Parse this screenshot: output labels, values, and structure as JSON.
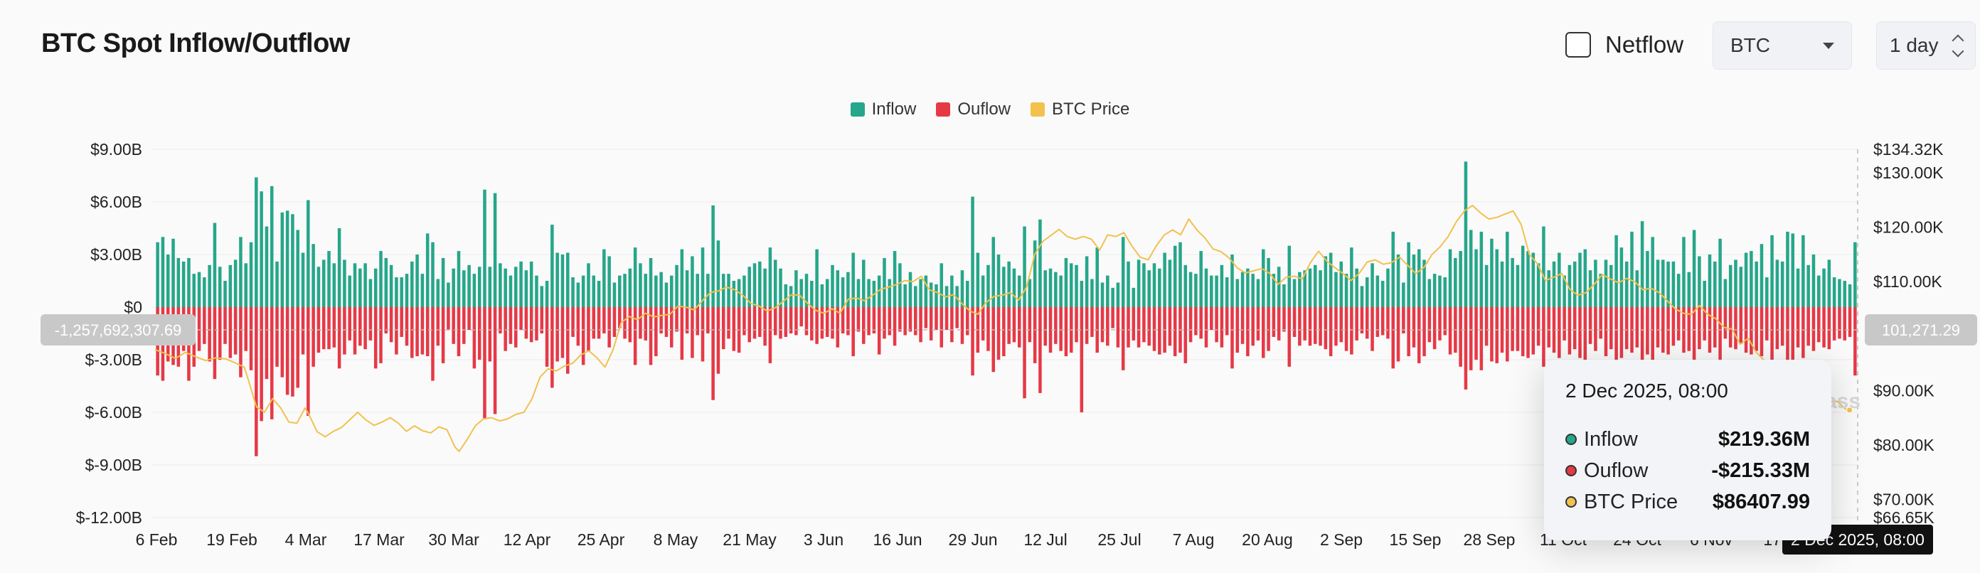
{
  "header": {
    "title": "BTC Spot Inflow/Outflow",
    "netflow_label": "Netflow",
    "asset_selected": "BTC",
    "interval_selected": "1 day"
  },
  "colors": {
    "inflow": "#26a68a",
    "outflow": "#e63946",
    "price": "#f2c14e"
  },
  "legend": [
    "Inflow",
    "Ouflow",
    "BTC Price"
  ],
  "crosshair": {
    "left_value": "-1,257,692,307.69",
    "right_value": "101,271.29",
    "date": "2 Dec 2025, 08:00"
  },
  "tooltip": {
    "date": "2 Dec 2025, 08:00",
    "rows": [
      {
        "name": "Inflow",
        "value": "$219.36M"
      },
      {
        "name": "Ouflow",
        "value": "-$215.33M"
      },
      {
        "name": "BTC Price",
        "value": "$86407.99"
      }
    ]
  },
  "watermark": "ass",
  "chart_data": {
    "type": "bar",
    "x_ticks": [
      "6 Feb",
      "19 Feb",
      "4 Mar",
      "17 Mar",
      "30 Mar",
      "12 Apr",
      "25 Apr",
      "8 May",
      "21 May",
      "3 Jun",
      "16 Jun",
      "29 Jun",
      "12 Jul",
      "25 Jul",
      "7 Aug",
      "20 Aug",
      "2 Sep",
      "15 Sep",
      "28 Sep",
      "11 Oct",
      "24 Oct",
      "6 Nov",
      "17"
    ],
    "y_left_ticks": [
      "$9.00B",
      "$6.00B",
      "$3.00B",
      "$0",
      "$-3.00B",
      "$-6.00B",
      "$-9.00B",
      "$-12.00B"
    ],
    "y_left_range": [
      -12,
      9
    ],
    "y_right_ticks": [
      "$134.32K",
      "$130.00K",
      "$120.00K",
      "$110.00K",
      "$90.00K",
      "$80.00K",
      "$70.00K",
      "$66.65K"
    ],
    "y_right_range": [
      66.65,
      134.32
    ],
    "inflow_billions": [
      3.7,
      4.0,
      3.0,
      3.9,
      2.8,
      2.6,
      2.8,
      1.9,
      2.0,
      1.7,
      2.4,
      4.8,
      2.3,
      1.5,
      2.4,
      2.7,
      4.0,
      2.5,
      3.7,
      7.4,
      6.6,
      4.6,
      6.9,
      2.6,
      5.4,
      5.5,
      5.3,
      4.4,
      3.1,
      6.1,
      3.6,
      2.3,
      2.7,
      3.2,
      2.5,
      4.5,
      2.7,
      1.8,
      2.5,
      2.2,
      2.5,
      1.6,
      2.2,
      3.2,
      2.8,
      2.4,
      1.7,
      1.7,
      1.9,
      2.6,
      3.0,
      1.9,
      4.2,
      3.7,
      1.6,
      2.8,
      1.4,
      2.2,
      3.2,
      2.1,
      2.4,
      1.9,
      2.3,
      6.7,
      2.3,
      6.5,
      2.5,
      2.2,
      1.8,
      2.3,
      2.6,
      2.1,
      2.6,
      1.8,
      1.2,
      1.5,
      4.7,
      3.1,
      3.0,
      3.1,
      1.7,
      1.4,
      1.8,
      2.5,
      1.8,
      1.5,
      3.3,
      2.9,
      1.4,
      1.8,
      1.9,
      2.2,
      3.4,
      2.5,
      1.9,
      2.8,
      1.8,
      2.0,
      1.4,
      1.8,
      2.4,
      3.3,
      2.1,
      2.9,
      1.9,
      3.4,
      1.9,
      5.8,
      3.8,
      1.9,
      1.9,
      1.5,
      1.6,
      1.8,
      2.3,
      2.5,
      2.6,
      2.2,
      3.4,
      2.7,
      2.2,
      1.3,
      1.2,
      2.1,
      1.6,
      1.9,
      1.5,
      3.3,
      1.3,
      1.6,
      2.4,
      2.1,
      1.7,
      2.0,
      3.1,
      1.6,
      2.7,
      1.6,
      1.5,
      1.8,
      2.8,
      1.6,
      3.2,
      2.5,
      1.3,
      2.0,
      1.2,
      1.6,
      1.8,
      1.4,
      1.3,
      2.5,
      1.2,
      1.8,
      1.2,
      2.1,
      1.5,
      6.3,
      3.1,
      1.8,
      2.4,
      4.0,
      3.0,
      2.3,
      2.6,
      2.2,
      1.8,
      4.6,
      1.6,
      3.8,
      5.0,
      2.1,
      2.2,
      2.0,
      1.8,
      2.8,
      2.5,
      2.4,
      1.5,
      2.9,
      1.6,
      3.4,
      1.4,
      1.8,
      1.1,
      1.4,
      4.0,
      2.6,
      1.1,
      2.7,
      2.5,
      2.1,
      2.5,
      2.2,
      3.1,
      2.7,
      3.5,
      3.7,
      2.4,
      2.0,
      1.9,
      3.2,
      2.2,
      1.8,
      1.8,
      2.4,
      1.7,
      3.0,
      1.6,
      2.0,
      2.2,
      1.9,
      1.6,
      3.3,
      2.8,
      1.9,
      2.3,
      1.3,
      3.5,
      1.6,
      2.0,
      2.1,
      2.2,
      2.4,
      2.1,
      2.9,
      3.1,
      2.0,
      2.6,
      1.9,
      3.4,
      2.2,
      1.2,
      1.7,
      2.5,
      1.8,
      1.5,
      2.2,
      4.3,
      3.0,
      1.4,
      3.7,
      3.0,
      3.3,
      2.7,
      1.6,
      1.9,
      1.8,
      1.7,
      3.3,
      2.8,
      3.2,
      8.3,
      4.4,
      3.3,
      4.3,
      2.4,
      3.9,
      3.3,
      2.6,
      4.3,
      2.8,
      2.4,
      3.5,
      3.2,
      3.1,
      2.5,
      4.6,
      2.1,
      2.6,
      3.1,
      1.8,
      2.4,
      2.6,
      3.1,
      3.3,
      2.1,
      2.7,
      1.9,
      2.7,
      2.4,
      4.1,
      3.4,
      2.6,
      4.3,
      2.1,
      4.9,
      3.2,
      4.0,
      2.7,
      2.7,
      2.6,
      2.6,
      1.9,
      4.0,
      2.0,
      4.4,
      2.9,
      1.5,
      3.0,
      2.6,
      3.9,
      1.6,
      2.4,
      2.7,
      2.3,
      3.1,
      3.2,
      2.6,
      3.6,
      1.7,
      4.1,
      2.7,
      2.6,
      4.3,
      4.2,
      2.2,
      4.1,
      2.4,
      3.0,
      1.8,
      2.2,
      2.7,
      1.7,
      1.6,
      1.5,
      1.3,
      3.7
    ],
    "outflow_billions": [
      -3.9,
      -4.2,
      -3.1,
      -3.3,
      -3.4,
      -2.5,
      -4.2,
      -3.4,
      -2.5,
      -2.1,
      -3.1,
      -4.1,
      -3.0,
      -2.1,
      -2.9,
      -2.7,
      -4.0,
      -2.5,
      -3.6,
      -8.5,
      -6.5,
      -4.1,
      -6.4,
      -3.4,
      -4.0,
      -5.0,
      -5.1,
      -4.6,
      -2.7,
      -6.2,
      -3.4,
      -2.6,
      -2.4,
      -2.4,
      -2.3,
      -3.5,
      -2.7,
      -1.9,
      -2.7,
      -2.2,
      -2.4,
      -1.9,
      -3.5,
      -3.2,
      -1.5,
      -2.0,
      -2.7,
      -1.7,
      -2.2,
      -2.9,
      -2.8,
      -2.7,
      -2.8,
      -4.2,
      -2.2,
      -3.2,
      -1.3,
      -2.1,
      -2.8,
      -2.1,
      -1.3,
      -3.5,
      -3.0,
      -6.4,
      -3.1,
      -6.1,
      -1.5,
      -2.5,
      -2.1,
      -2.3,
      -1.3,
      -1.8,
      -2.0,
      -1.9,
      -1.5,
      -3.4,
      -4.6,
      -3.1,
      -2.9,
      -3.8,
      -1.7,
      -2.2,
      -3.3,
      -2.5,
      -1.8,
      -1.8,
      -1.5,
      -2.3,
      -1.7,
      -1.2,
      -1.8,
      -2.0,
      -3.3,
      -1.8,
      -1.9,
      -3.3,
      -2.8,
      -1.5,
      -1.7,
      -2.3,
      -1.4,
      -3.0,
      -1.5,
      -2.9,
      -1.6,
      -3.1,
      -1.5,
      -5.3,
      -3.8,
      -2.4,
      -1.8,
      -2.5,
      -2.6,
      -1.6,
      -2.0,
      -1.8,
      -1.7,
      -2.2,
      -3.2,
      -1.6,
      -1.8,
      -1.7,
      -1.5,
      -1.6,
      -1.1,
      -1.6,
      -1.9,
      -2.1,
      -1.8,
      -1.7,
      -1.8,
      -2.3,
      -1.5,
      -1.6,
      -2.8,
      -1.4,
      -2.1,
      -1.6,
      -1.5,
      -2.7,
      -1.8,
      -1.6,
      -2.2,
      -1.4,
      -1.6,
      -1.4,
      -1.6,
      -2.0,
      -1.2,
      -1.9,
      -1.3,
      -2.3,
      -1.3,
      -2.0,
      -1.2,
      -2.1,
      -1.6,
      -3.9,
      -2.6,
      -1.9,
      -2.5,
      -3.7,
      -3.0,
      -2.8,
      -2.1,
      -2.0,
      -2.3,
      -5.2,
      -2.0,
      -3.2,
      -4.9,
      -2.2,
      -2.6,
      -2.1,
      -2.5,
      -2.8,
      -2.6,
      -2.0,
      -6.0,
      -2.1,
      -1.7,
      -2.6,
      -2.0,
      -2.2,
      -1.2,
      -2.3,
      -3.6,
      -2.3,
      -1.9,
      -2.3,
      -2.0,
      -2.2,
      -2.5,
      -2.7,
      -2.6,
      -2.2,
      -2.8,
      -2.6,
      -3.2,
      -2.0,
      -1.6,
      -1.8,
      -2.3,
      -1.3,
      -2.0,
      -2.3,
      -1.6,
      -3.5,
      -2.6,
      -2.1,
      -2.8,
      -2.2,
      -1.9,
      -2.9,
      -2.5,
      -1.7,
      -1.9,
      -1.4,
      -3.4,
      -1.7,
      -2.2,
      -1.9,
      -2.2,
      -2.1,
      -2.2,
      -2.4,
      -2.8,
      -2.2,
      -2.0,
      -2.5,
      -2.7,
      -1.9,
      -1.5,
      -1.8,
      -2.5,
      -1.7,
      -1.6,
      -1.8,
      -3.5,
      -3.1,
      -1.5,
      -2.8,
      -2.3,
      -3.2,
      -2.8,
      -2.0,
      -2.4,
      -1.9,
      -1.6,
      -2.7,
      -2.6,
      -3.4,
      -4.7,
      -3.6,
      -3.0,
      -3.6,
      -2.2,
      -3.1,
      -3.2,
      -2.6,
      -3.1,
      -2.5,
      -2.5,
      -2.8,
      -2.9,
      -2.7,
      -2.2,
      -3.4,
      -2.3,
      -2.6,
      -2.9,
      -1.9,
      -2.7,
      -2.4,
      -2.9,
      -3.0,
      -2.1,
      -2.5,
      -1.8,
      -2.8,
      -2.4,
      -3.1,
      -2.9,
      -2.4,
      -2.6,
      -2.3,
      -3.5,
      -2.7,
      -3.2,
      -2.3,
      -2.6,
      -2.7,
      -2.2,
      -1.9,
      -2.6,
      -2.5,
      -3.2,
      -2.4,
      -1.9,
      -2.6,
      -2.3,
      -3.0,
      -1.8,
      -2.3,
      -2.4,
      -2.1,
      -2.6,
      -2.7,
      -2.5,
      -2.8,
      -1.9,
      -3.0,
      -2.4,
      -2.2,
      -3.0,
      -3.1,
      -2.3,
      -2.9,
      -2.2,
      -2.5,
      -2.0,
      -2.3,
      -2.4,
      -1.9,
      -1.8,
      -1.9,
      -1.7,
      -3.9
    ],
    "price_k": [
      [
        0,
        97.5
      ],
      [
        5,
        96.8
      ],
      [
        10,
        95.9
      ],
      [
        15,
        97.0
      ],
      [
        20,
        96.2
      ],
      [
        25,
        95.5
      ],
      [
        30,
        96.0
      ],
      [
        35,
        95.8
      ],
      [
        40,
        95.0
      ],
      [
        44,
        94.3
      ],
      [
        46,
        92.0
      ],
      [
        48,
        89.5
      ],
      [
        50,
        87.0
      ],
      [
        54,
        86.0
      ],
      [
        58,
        88.5
      ],
      [
        62,
        86.8
      ],
      [
        66,
        84.2
      ],
      [
        70,
        84.0
      ],
      [
        74,
        86.8
      ],
      [
        76,
        85.5
      ],
      [
        80,
        82.4
      ],
      [
        84,
        81.5
      ],
      [
        88,
        82.5
      ],
      [
        92,
        83.2
      ],
      [
        96,
        84.6
      ],
      [
        100,
        86.0
      ],
      [
        104,
        84.6
      ],
      [
        108,
        83.6
      ],
      [
        112,
        84.2
      ],
      [
        116,
        85.0
      ],
      [
        120,
        84.0
      ],
      [
        124,
        82.5
      ],
      [
        128,
        83.5
      ],
      [
        132,
        82.6
      ],
      [
        136,
        82.2
      ],
      [
        140,
        83.3
      ],
      [
        144,
        82.8
      ],
      [
        148,
        79.6
      ],
      [
        150,
        78.8
      ],
      [
        154,
        81.0
      ],
      [
        158,
        83.5
      ],
      [
        162,
        84.8
      ],
      [
        166,
        85.0
      ],
      [
        170,
        84.4
      ],
      [
        174,
        84.8
      ],
      [
        178,
        85.6
      ],
      [
        182,
        86.0
      ],
      [
        186,
        88.5
      ],
      [
        190,
        92.5
      ],
      [
        194,
        94.0
      ],
      [
        198,
        93.6
      ],
      [
        202,
        94.5
      ],
      [
        206,
        95.0
      ],
      [
        210,
        96.5
      ],
      [
        214,
        97.3
      ],
      [
        218,
        96.0
      ],
      [
        222,
        94.3
      ],
      [
        226,
        97.5
      ],
      [
        230,
        102.5
      ],
      [
        234,
        103.6
      ],
      [
        238,
        103.0
      ],
      [
        242,
        104.2
      ],
      [
        246,
        103.5
      ],
      [
        250,
        103.8
      ],
      [
        254,
        104.0
      ],
      [
        258,
        105.5
      ],
      [
        262,
        105.3
      ],
      [
        266,
        104.8
      ],
      [
        270,
        106.5
      ],
      [
        274,
        108.0
      ],
      [
        278,
        108.3
      ],
      [
        282,
        109.0
      ],
      [
        286,
        108.5
      ],
      [
        290,
        107.5
      ],
      [
        294,
        106.0
      ],
      [
        298,
        105.5
      ],
      [
        302,
        104.6
      ],
      [
        306,
        105.2
      ],
      [
        310,
        106.4
      ],
      [
        314,
        107.6
      ],
      [
        318,
        107.5
      ],
      [
        322,
        106.0
      ],
      [
        326,
        104.7
      ],
      [
        330,
        104.2
      ],
      [
        334,
        105.0
      ],
      [
        338,
        104.2
      ],
      [
        342,
        106.8
      ],
      [
        346,
        107.0
      ],
      [
        350,
        106.5
      ],
      [
        354,
        107.5
      ],
      [
        358,
        108.6
      ],
      [
        362,
        109.0
      ],
      [
        366,
        109.5
      ],
      [
        370,
        110.2
      ],
      [
        374,
        110.0
      ],
      [
        378,
        111.0
      ],
      [
        382,
        108.5
      ],
      [
        386,
        108.0
      ],
      [
        390,
        107.2
      ],
      [
        394,
        107.6
      ],
      [
        398,
        106.0
      ],
      [
        402,
        104.6
      ],
      [
        406,
        104.0
      ],
      [
        410,
        106.2
      ],
      [
        414,
        107.3
      ],
      [
        418,
        107.5
      ],
      [
        422,
        108.0
      ],
      [
        426,
        106.6
      ],
      [
        430,
        109.0
      ],
      [
        434,
        115.0
      ],
      [
        438,
        117.4
      ],
      [
        442,
        118.5
      ],
      [
        446,
        119.6
      ],
      [
        450,
        118.3
      ],
      [
        454,
        117.8
      ],
      [
        458,
        118.3
      ],
      [
        462,
        117.8
      ],
      [
        466,
        115.8
      ],
      [
        470,
        118.6
      ],
      [
        474,
        118.3
      ],
      [
        478,
        119.0
      ],
      [
        482,
        116.5
      ],
      [
        486,
        114.5
      ],
      [
        490,
        114.0
      ],
      [
        494,
        116.6
      ],
      [
        498,
        118.6
      ],
      [
        502,
        119.5
      ],
      [
        506,
        118.6
      ],
      [
        510,
        121.5
      ],
      [
        514,
        119.5
      ],
      [
        518,
        118.0
      ],
      [
        522,
        116.0
      ],
      [
        526,
        115.5
      ],
      [
        530,
        114.3
      ],
      [
        534,
        112.5
      ],
      [
        538,
        111.6
      ],
      [
        542,
        112.0
      ],
      [
        546,
        112.4
      ],
      [
        550,
        111.5
      ],
      [
        554,
        109.5
      ],
      [
        558,
        110.8
      ],
      [
        562,
        111.0
      ],
      [
        566,
        110.5
      ],
      [
        570,
        113.5
      ],
      [
        574,
        115.6
      ],
      [
        578,
        113.8
      ],
      [
        582,
        112.6
      ],
      [
        586,
        111.5
      ],
      [
        590,
        110.2
      ],
      [
        594,
        111.5
      ],
      [
        598,
        113.6
      ],
      [
        602,
        114.0
      ],
      [
        606,
        113.2
      ],
      [
        610,
        113.5
      ],
      [
        614,
        114.5
      ],
      [
        618,
        113.0
      ],
      [
        622,
        111.5
      ],
      [
        626,
        112.6
      ],
      [
        630,
        115.0
      ],
      [
        634,
        116.4
      ],
      [
        638,
        118.3
      ],
      [
        642,
        121.0
      ],
      [
        646,
        123.0
      ],
      [
        650,
        124.0
      ],
      [
        654,
        122.6
      ],
      [
        658,
        121.5
      ],
      [
        662,
        121.8
      ],
      [
        666,
        122.4
      ],
      [
        670,
        123.0
      ],
      [
        674,
        120.5
      ],
      [
        678,
        115.0
      ],
      [
        682,
        113.3
      ],
      [
        686,
        110.2
      ],
      [
        690,
        110.8
      ],
      [
        694,
        111.5
      ],
      [
        698,
        108.6
      ],
      [
        702,
        107.5
      ],
      [
        706,
        108.0
      ],
      [
        710,
        109.5
      ],
      [
        714,
        111.3
      ],
      [
        718,
        110.5
      ],
      [
        722,
        109.8
      ],
      [
        726,
        110.6
      ],
      [
        730,
        110.0
      ],
      [
        734,
        108.5
      ],
      [
        738,
        108.8
      ],
      [
        742,
        108.0
      ],
      [
        746,
        106.5
      ],
      [
        750,
        105.0
      ],
      [
        754,
        104.2
      ],
      [
        758,
        104.0
      ],
      [
        762,
        105.6
      ],
      [
        766,
        104.0
      ],
      [
        770,
        103.2
      ],
      [
        774,
        101.6
      ],
      [
        778,
        101.3
      ],
      [
        782,
        98.5
      ],
      [
        786,
        99.6
      ],
      [
        790,
        97.0
      ],
      [
        794,
        95.5
      ],
      [
        798,
        94.0
      ],
      [
        802,
        92.6
      ],
      [
        806,
        91.0
      ],
      [
        810,
        90.5
      ],
      [
        814,
        90.2
      ],
      [
        818,
        89.5
      ],
      [
        822,
        89.0
      ],
      [
        826,
        88.0
      ],
      [
        830,
        88.0
      ],
      [
        834,
        86.6
      ],
      [
        836,
        86.4
      ]
    ]
  }
}
